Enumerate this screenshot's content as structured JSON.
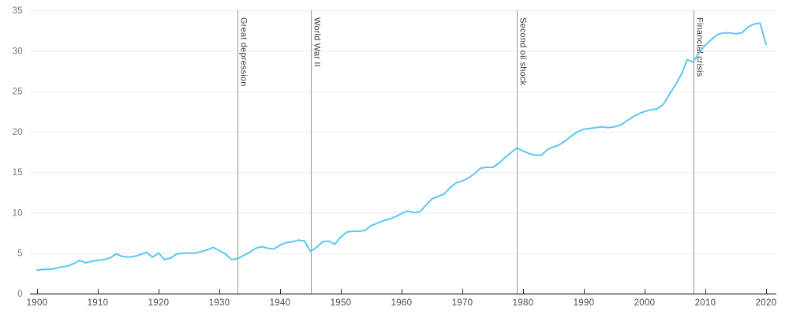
{
  "chart_data": {
    "type": "line",
    "title": "",
    "xlabel": "",
    "ylabel": "",
    "x_start": 1900,
    "x_end": 2020,
    "x_ticks": [
      1900,
      1910,
      1920,
      1930,
      1940,
      1950,
      1960,
      1970,
      1980,
      1990,
      2000,
      2010,
      2020
    ],
    "y_ticks": [
      0,
      5,
      10,
      15,
      20,
      25,
      30,
      35
    ],
    "ylim": [
      0,
      35
    ],
    "grid": "horizontal",
    "legend": "none",
    "series": [
      {
        "name": "main-series",
        "color": "#5bc7f3",
        "x": [
          1900,
          1901,
          1902,
          1903,
          1904,
          1905,
          1906,
          1907,
          1908,
          1909,
          1910,
          1911,
          1912,
          1913,
          1914,
          1915,
          1916,
          1917,
          1918,
          1919,
          1920,
          1921,
          1922,
          1923,
          1924,
          1925,
          1926,
          1927,
          1928,
          1929,
          1930,
          1931,
          1932,
          1933,
          1934,
          1935,
          1936,
          1937,
          1938,
          1939,
          1940,
          1941,
          1942,
          1943,
          1944,
          1945,
          1946,
          1947,
          1948,
          1949,
          1950,
          1951,
          1952,
          1953,
          1954,
          1955,
          1956,
          1957,
          1958,
          1959,
          1960,
          1961,
          1962,
          1963,
          1964,
          1965,
          1966,
          1967,
          1968,
          1969,
          1970,
          1971,
          1972,
          1973,
          1974,
          1975,
          1976,
          1977,
          1978,
          1979,
          1980,
          1981,
          1982,
          1983,
          1984,
          1985,
          1986,
          1987,
          1988,
          1989,
          1990,
          1991,
          1992,
          1993,
          1994,
          1995,
          1996,
          1997,
          1998,
          1999,
          2000,
          2001,
          2002,
          2003,
          2004,
          2005,
          2006,
          2007,
          2008,
          2009,
          2010,
          2011,
          2012,
          2013,
          2014,
          2015,
          2016,
          2017,
          2018,
          2019,
          2020
        ],
        "values": [
          2.9,
          3.0,
          3.0,
          3.1,
          3.3,
          3.4,
          3.7,
          4.1,
          3.8,
          4.0,
          4.1,
          4.2,
          4.4,
          4.9,
          4.6,
          4.5,
          4.6,
          4.8,
          5.1,
          4.5,
          5.0,
          4.2,
          4.4,
          4.9,
          5.0,
          5.0,
          5.0,
          5.2,
          5.4,
          5.7,
          5.3,
          4.9,
          4.2,
          4.3,
          4.7,
          5.1,
          5.6,
          5.8,
          5.6,
          5.5,
          6.0,
          6.3,
          6.4,
          6.6,
          6.5,
          5.2,
          5.7,
          6.4,
          6.5,
          6.1,
          7.0,
          7.6,
          7.7,
          7.7,
          7.8,
          8.4,
          8.7,
          9.0,
          9.2,
          9.5,
          9.9,
          10.2,
          10.0,
          10.1,
          10.9,
          11.7,
          12.0,
          12.3,
          13.1,
          13.7,
          13.9,
          14.3,
          14.8,
          15.5,
          15.6,
          15.6,
          16.1,
          16.8,
          17.4,
          18.0,
          17.6,
          17.3,
          17.1,
          17.1,
          17.8,
          18.1,
          18.4,
          18.9,
          19.5,
          20.0,
          20.3,
          20.4,
          20.5,
          20.6,
          20.5,
          20.6,
          20.8,
          21.3,
          21.8,
          22.2,
          22.5,
          22.7,
          22.8,
          23.3,
          24.5,
          25.7,
          27.0,
          28.9,
          28.6,
          29.8,
          30.7,
          31.4,
          32.0,
          32.2,
          32.2,
          32.1,
          32.2,
          32.9,
          33.3,
          33.4,
          30.8
        ]
      }
    ],
    "annotations": [
      {
        "label": "Great depression",
        "year": 1933
      },
      {
        "label": "World War II",
        "year": 1945
      },
      {
        "label": "Second oil shock",
        "year": 1979
      },
      {
        "label": "Financial crisis",
        "year": 2008
      }
    ],
    "colors": {
      "line": "#5bc7f3",
      "gridline": "#ededed",
      "axis_line": "#2e2e2e",
      "y_tick_label": "#767676",
      "x_tick_label": "#4b4b4b",
      "annotation_line": "#979797",
      "annotation_label": "#3d3d3d",
      "background": "#ffffff"
    }
  }
}
